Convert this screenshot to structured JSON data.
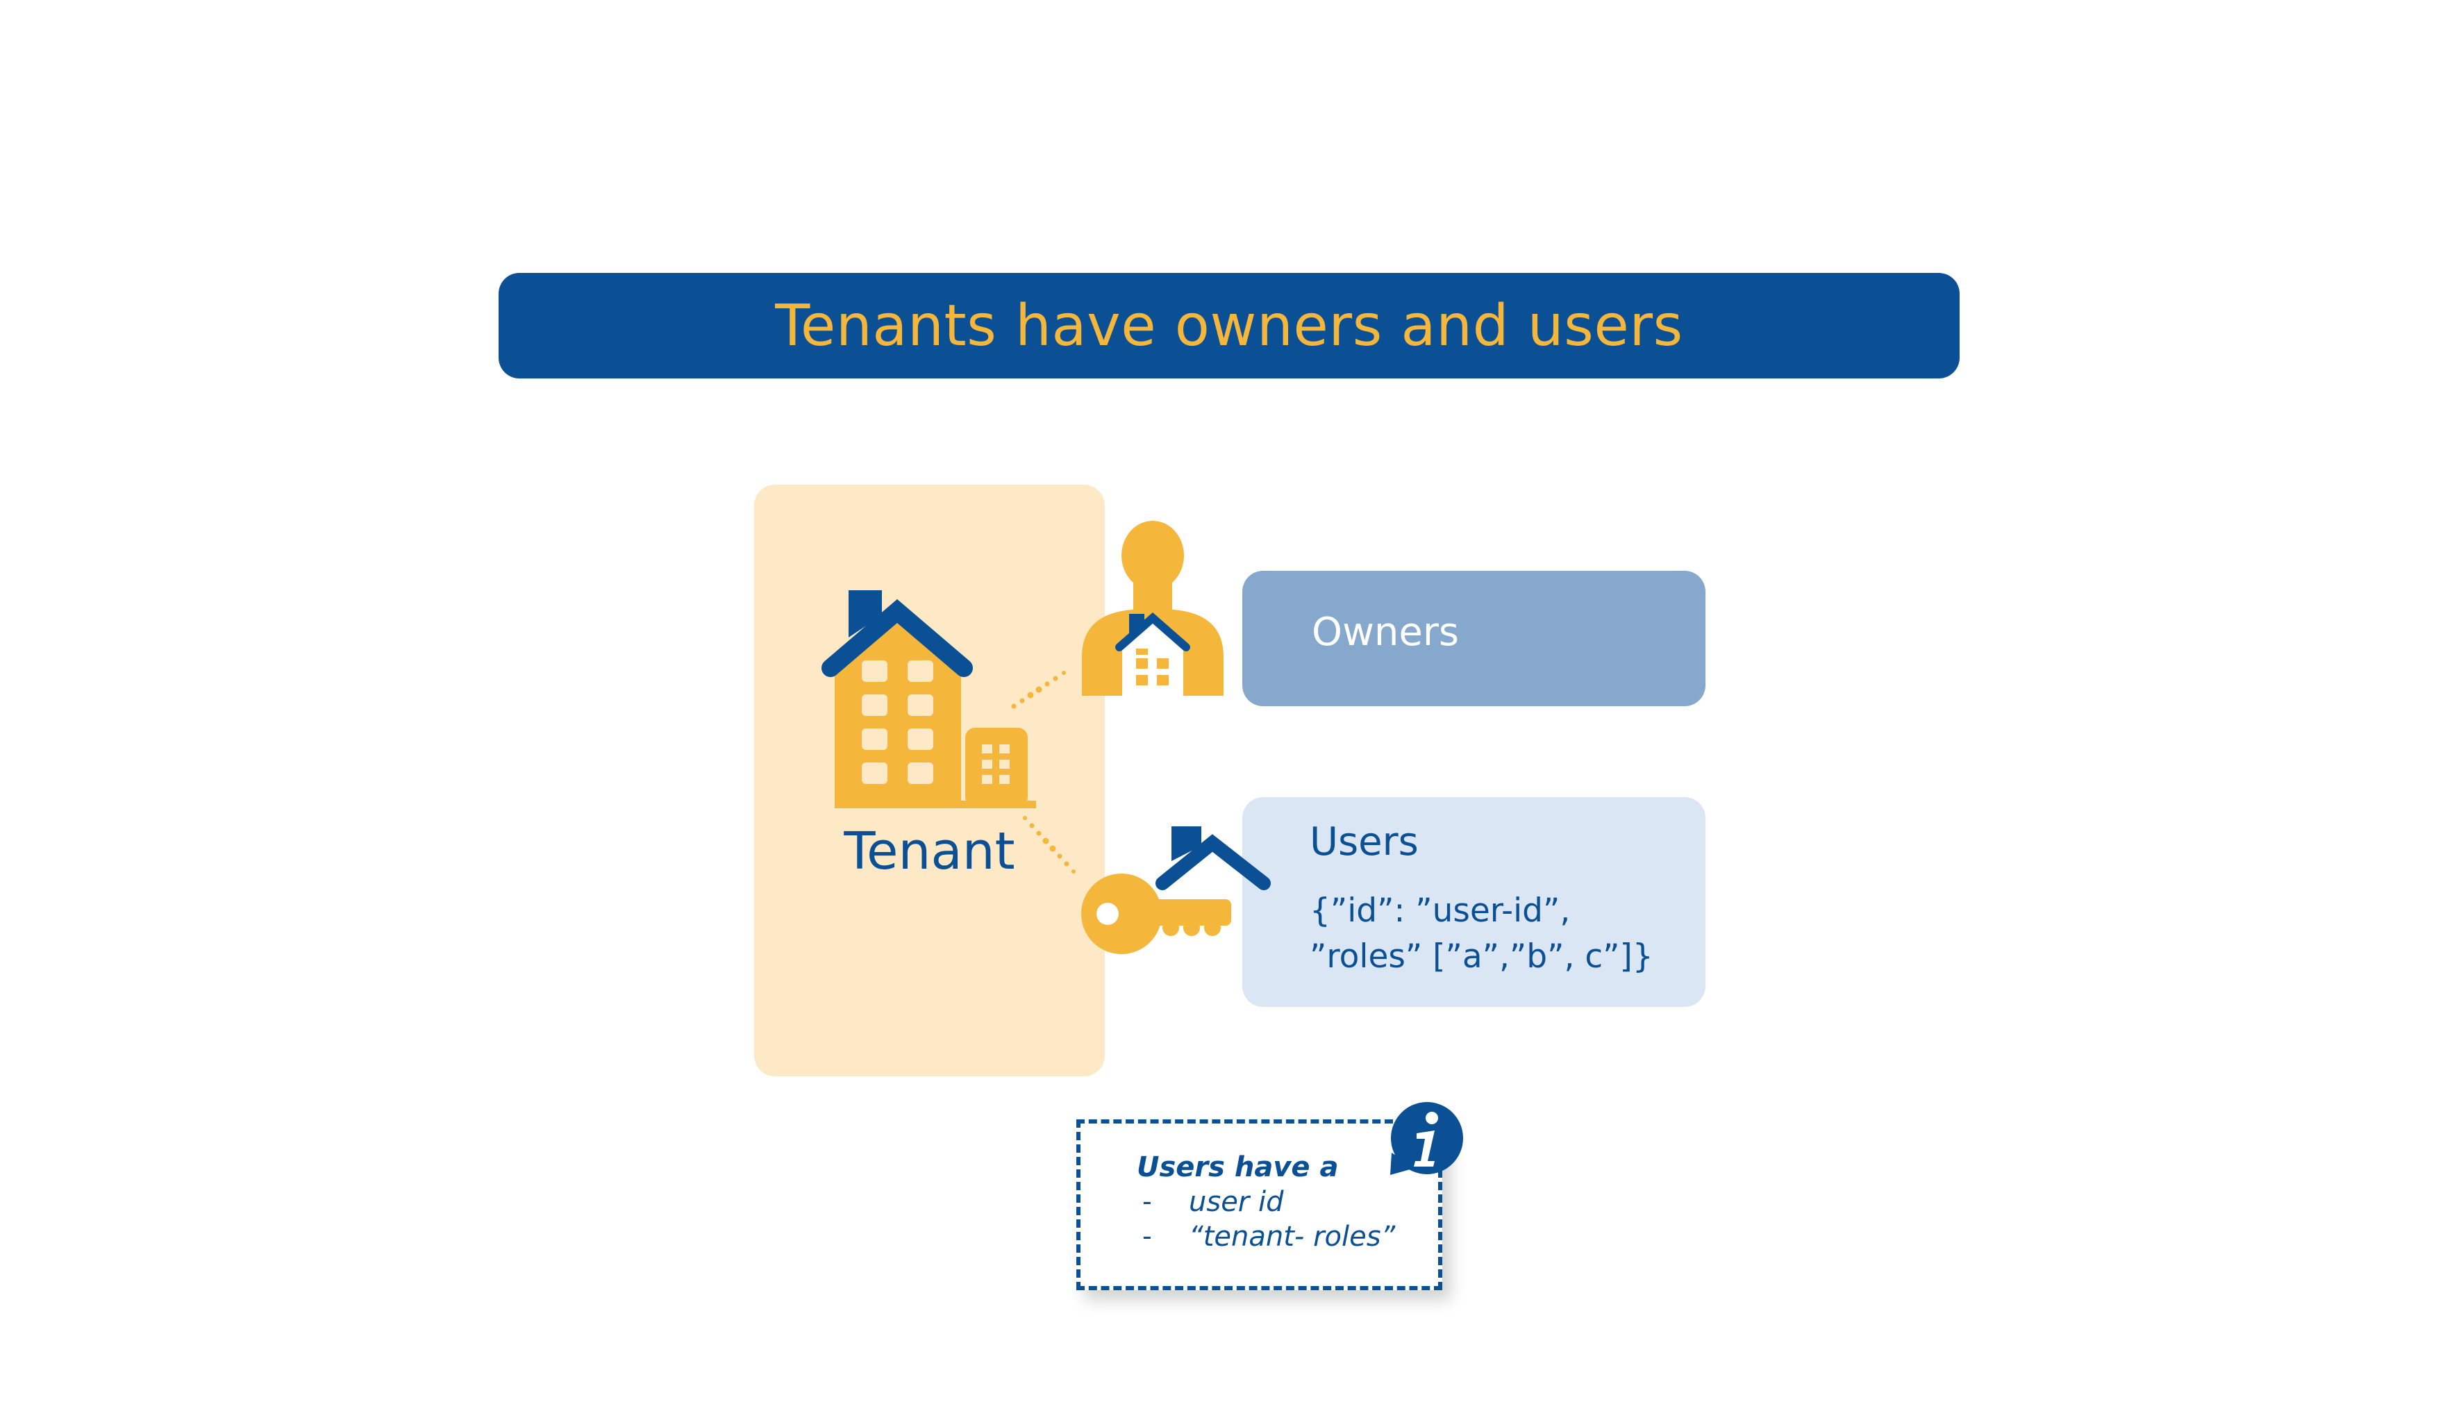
{
  "title": "Tenants have owners and users",
  "tenant": {
    "label": "Tenant"
  },
  "owners": {
    "label": "Owners"
  },
  "users": {
    "label": "Users",
    "json_line1": "{”id”: ”user-id”,",
    "json_line2": "”roles” [”a”,”b”, c”]}"
  },
  "note": {
    "title": "Users have a",
    "items": [
      {
        "bullet": "-",
        "text": "user id"
      },
      {
        "bullet": "-",
        "text": "“tenant- roles”"
      }
    ]
  },
  "colors": {
    "navy": "#0b4f94",
    "gold": "#f5b73b",
    "tenant_panel": "#fde9c6",
    "owners_box": "#87a8cd",
    "users_box": "#dae6f3"
  },
  "icons": [
    "building-icon",
    "owner-person-icon",
    "key-icon",
    "info-icon",
    "connector-dots"
  ]
}
